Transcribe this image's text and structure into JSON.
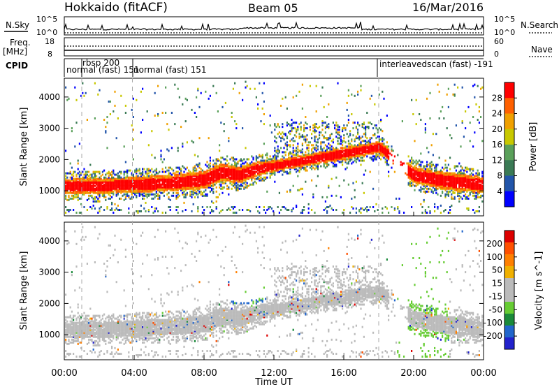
{
  "header": {
    "station": "Hokkaido (fitACF)",
    "beam": "Beam 05",
    "date": "16/Mar/2016"
  },
  "left_labels": {
    "nsky": "N.Sky",
    "freq": "Freq.",
    "freq_unit": "[MHz]",
    "cpid": "CPID"
  },
  "right_labels": {
    "nsearch": "N.Search",
    "nave": "Nave"
  },
  "noise_panel": {
    "tick_top": "10^5",
    "tick_bottom": "10^0",
    "tick_top_right": "10^5",
    "tick_bottom_right": "10^0"
  },
  "freq_panel": {
    "ticks_left": [
      "18",
      "8"
    ],
    "ticks_right": [
      "60",
      "0"
    ]
  },
  "cpid_segments": [
    {
      "label": "rbsp 200",
      "start_hour": 1.0
    },
    {
      "label": "normal (fast) 151",
      "start_hour": 0.0
    },
    {
      "label": "normal (fast) 151",
      "start_hour": 3.9
    },
    {
      "label": "interleavedscan (fast) -191",
      "start_hour": 18.0
    }
  ],
  "colors": {
    "power": [
      "#0000ff",
      "#2255aa",
      "#3a7a55",
      "#5aa05a",
      "#c8c800",
      "#f0a000",
      "#ff6000",
      "#ff0000"
    ],
    "velocity": [
      "#2222cc",
      "#2266cc",
      "#1a8a3a",
      "#66cc33",
      "#bbbbbb",
      "#bbbbbb",
      "#f0b000",
      "#ff8000",
      "#ff5000",
      "#dd0000"
    ],
    "gs_gray": "#bbbbbb"
  },
  "chart_data": [
    {
      "type": "heatmap",
      "title": "Power",
      "ylabel": "Slant Range [km]",
      "xlim": [
        0,
        24
      ],
      "ylim": [
        200,
        4600
      ],
      "yticks": [
        "1000",
        "2000",
        "3000",
        "4000"
      ],
      "colorbar": {
        "label": "Power [dB]",
        "ticks": [
          "28",
          "24",
          "20",
          "16",
          "12",
          "8",
          "4"
        ],
        "range": [
          0,
          30
        ]
      },
      "scatter_bands": [
        {
          "name": "main",
          "x": [
            0,
            2,
            3.5,
            4,
            6,
            8,
            9,
            10,
            11,
            12,
            14,
            16,
            17,
            18,
            20,
            22,
            24
          ],
          "center_km": [
            1150,
            1150,
            1200,
            1200,
            1250,
            1350,
            1600,
            1500,
            1700,
            1800,
            2000,
            2200,
            2300,
            2400,
            1500,
            1300,
            1200
          ],
          "width_km": [
            450,
            500,
            450,
            500,
            500,
            550,
            550,
            500,
            450,
            350,
            350,
            400,
            350,
            350,
            500,
            550,
            500
          ]
        }
      ]
    },
    {
      "type": "heatmap",
      "title": "Velocity",
      "ylabel": "Slant Range [km]",
      "xlim": [
        0,
        24
      ],
      "ylim": [
        200,
        4600
      ],
      "yticks": [
        "1000",
        "2000",
        "3000",
        "4000"
      ],
      "colorbar": {
        "label": "Velocity [m s^-1]",
        "ticks": [
          "200",
          "100",
          "50",
          "15",
          "-15",
          "-50",
          "-100",
          "-200"
        ],
        "range": [
          -250,
          250
        ]
      }
    }
  ],
  "x_axis": {
    "label": "Time UT",
    "ticks": [
      "00:00",
      "04:00",
      "08:00",
      "12:00",
      "16:00",
      "20:00",
      "00:00"
    ],
    "tick_hours": [
      0,
      4,
      8,
      12,
      16,
      20,
      24
    ]
  }
}
